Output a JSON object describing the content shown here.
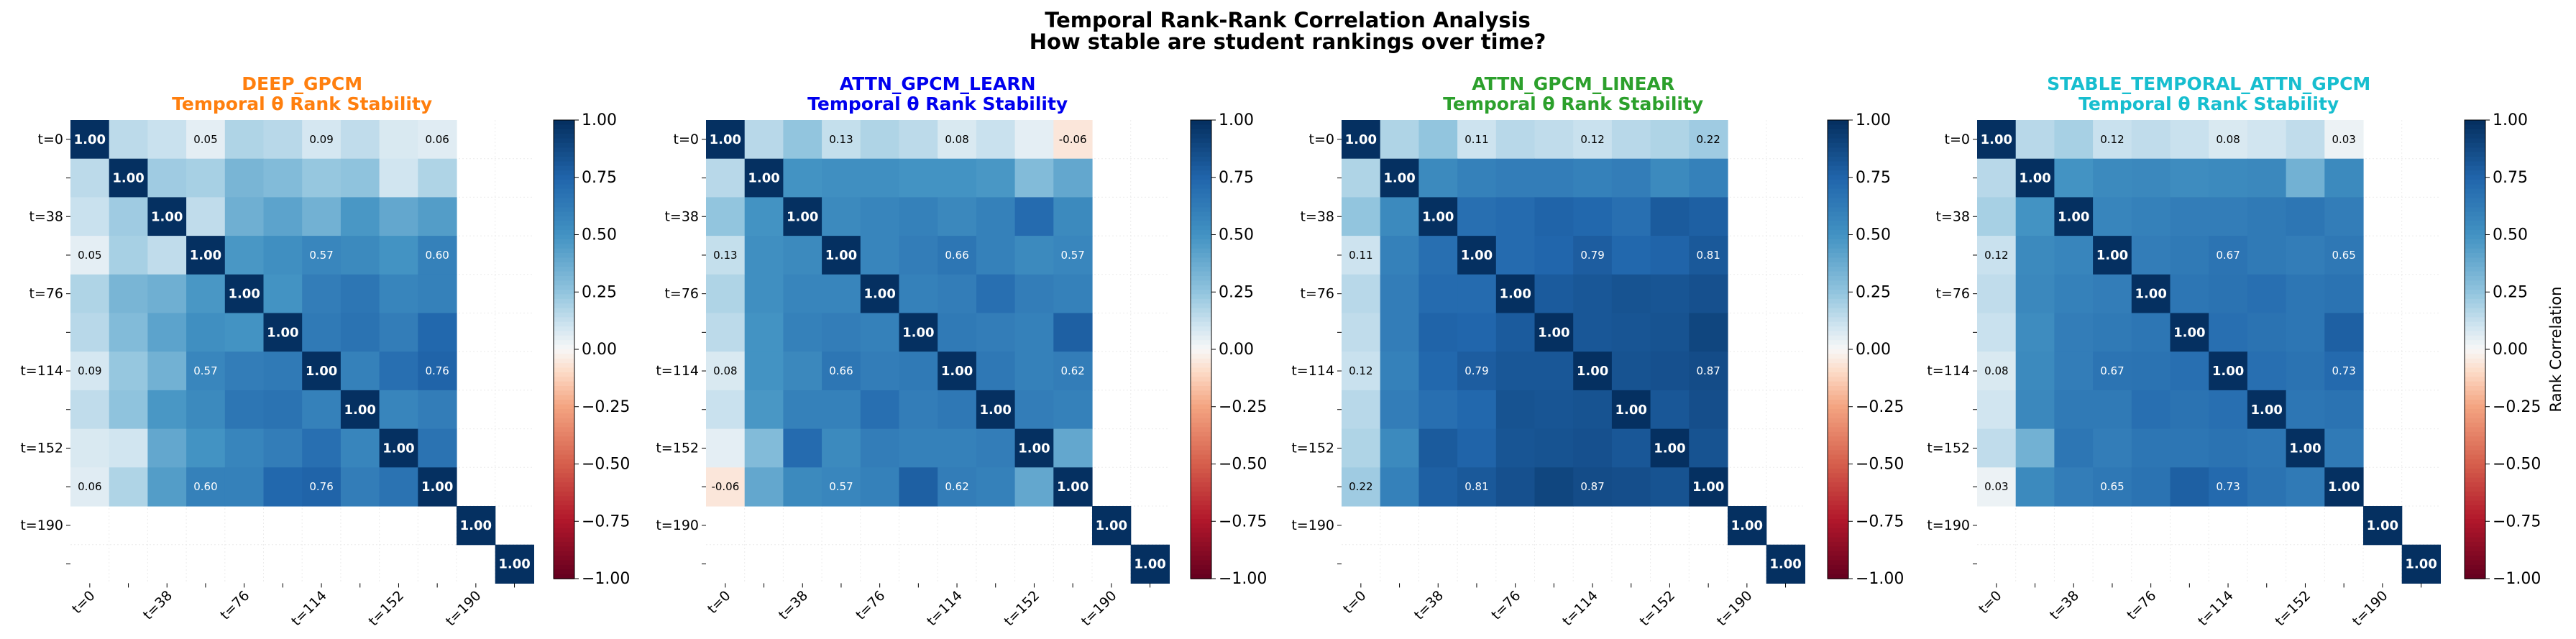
{
  "figure": {
    "title_line1": "Temporal Rank-Rank Correlation Analysis",
    "title_line2": "How stable are student rankings over time?"
  },
  "colorbar": {
    "label": "Rank Correlation",
    "ticks": [
      "1.00",
      "0.75",
      "0.50",
      "0.25",
      "0.00",
      "−0.25",
      "−0.50",
      "−0.75",
      "−1.00"
    ],
    "range": [
      -1,
      1
    ],
    "colormap": "RdBu"
  },
  "chart_data": [
    {
      "type": "heatmap",
      "model": "DEEP_GPCM",
      "title": "Temporal θ Rank Stability",
      "title_color": "#ff7f0e",
      "ytick_labels": [
        "t=0",
        "t=38",
        "t=76",
        "t=114",
        "t=152",
        "t=190"
      ],
      "xtick_labels": [
        "t=0",
        "t=38",
        "t=76",
        "t=114",
        "t=152",
        "t=190"
      ],
      "matrix": [
        [
          1.0,
          0.15,
          0.12,
          0.05,
          0.18,
          0.16,
          0.09,
          0.14,
          0.08,
          0.06,
          null,
          null
        ],
        [
          0.15,
          1.0,
          0.22,
          0.2,
          0.33,
          0.3,
          0.24,
          0.26,
          0.1,
          0.18,
          null,
          null
        ],
        [
          0.12,
          0.22,
          1.0,
          0.14,
          0.36,
          0.42,
          0.35,
          0.48,
          0.4,
          0.45,
          null,
          null
        ],
        [
          0.05,
          0.2,
          0.14,
          1.0,
          0.48,
          0.52,
          0.57,
          0.55,
          0.5,
          0.6,
          null,
          null
        ],
        [
          0.18,
          0.33,
          0.36,
          0.48,
          1.0,
          0.5,
          0.62,
          0.66,
          0.58,
          0.6,
          null,
          null
        ],
        [
          0.16,
          0.3,
          0.42,
          0.52,
          0.5,
          1.0,
          0.64,
          0.68,
          0.62,
          0.74,
          null,
          null
        ],
        [
          0.09,
          0.24,
          0.35,
          0.57,
          0.62,
          0.64,
          1.0,
          0.6,
          0.7,
          0.76,
          null,
          null
        ],
        [
          0.14,
          0.26,
          0.48,
          0.55,
          0.66,
          0.68,
          0.6,
          1.0,
          0.58,
          0.62,
          null,
          null
        ],
        [
          0.08,
          0.1,
          0.4,
          0.5,
          0.58,
          0.62,
          0.7,
          0.58,
          1.0,
          0.68,
          null,
          null
        ],
        [
          0.06,
          0.18,
          0.45,
          0.6,
          0.6,
          0.74,
          0.76,
          0.62,
          0.68,
          1.0,
          null,
          null
        ],
        [
          null,
          null,
          null,
          null,
          null,
          null,
          null,
          null,
          null,
          null,
          1.0,
          null
        ],
        [
          null,
          null,
          null,
          null,
          null,
          null,
          null,
          null,
          null,
          null,
          null,
          1.0
        ]
      ],
      "annotations": [
        {
          "row": 0,
          "col": 3,
          "text": "0.05"
        },
        {
          "row": 0,
          "col": 6,
          "text": "0.09"
        },
        {
          "row": 0,
          "col": 9,
          "text": "0.06"
        },
        {
          "row": 3,
          "col": 0,
          "text": "0.05"
        },
        {
          "row": 3,
          "col": 6,
          "text": "0.57"
        },
        {
          "row": 3,
          "col": 9,
          "text": "0.60"
        },
        {
          "row": 6,
          "col": 0,
          "text": "0.09"
        },
        {
          "row": 6,
          "col": 3,
          "text": "0.57"
        },
        {
          "row": 6,
          "col": 9,
          "text": "0.76"
        },
        {
          "row": 9,
          "col": 0,
          "text": "0.06"
        },
        {
          "row": 9,
          "col": 3,
          "text": "0.60"
        },
        {
          "row": 9,
          "col": 6,
          "text": "0.76"
        }
      ]
    },
    {
      "type": "heatmap",
      "model": "ATTN_GPCM_LEARN",
      "title": "Temporal θ Rank Stability",
      "title_color": "#0000ee",
      "ytick_labels": [
        "t=0",
        "t=38",
        "t=76",
        "t=114",
        "t=152",
        "t=190"
      ],
      "xtick_labels": [
        "t=0",
        "t=38",
        "t=76",
        "t=114",
        "t=152",
        "t=190"
      ],
      "matrix": [
        [
          1.0,
          0.16,
          0.25,
          0.13,
          0.18,
          0.15,
          0.08,
          0.12,
          0.05,
          -0.06,
          null,
          null
        ],
        [
          0.16,
          1.0,
          0.5,
          0.52,
          0.52,
          0.5,
          0.5,
          0.48,
          0.3,
          0.4,
          null,
          null
        ],
        [
          0.25,
          0.5,
          1.0,
          0.55,
          0.58,
          0.6,
          0.56,
          0.6,
          0.72,
          0.55,
          null,
          null
        ],
        [
          0.13,
          0.52,
          0.55,
          1.0,
          0.58,
          0.62,
          0.66,
          0.6,
          0.55,
          0.57,
          null,
          null
        ],
        [
          0.18,
          0.52,
          0.58,
          0.58,
          1.0,
          0.6,
          0.62,
          0.7,
          0.62,
          0.6,
          null,
          null
        ],
        [
          0.15,
          0.5,
          0.6,
          0.62,
          0.6,
          1.0,
          0.64,
          0.62,
          0.6,
          0.78,
          null,
          null
        ],
        [
          0.08,
          0.5,
          0.56,
          0.66,
          0.62,
          0.64,
          1.0,
          0.65,
          0.6,
          0.62,
          null,
          null
        ],
        [
          0.12,
          0.48,
          0.6,
          0.6,
          0.7,
          0.62,
          0.65,
          1.0,
          0.62,
          0.6,
          null,
          null
        ],
        [
          0.05,
          0.3,
          0.72,
          0.55,
          0.62,
          0.6,
          0.6,
          0.62,
          1.0,
          0.4,
          null,
          null
        ],
        [
          -0.06,
          0.4,
          0.55,
          0.57,
          0.6,
          0.78,
          0.62,
          0.6,
          0.4,
          1.0,
          null,
          null
        ],
        [
          null,
          null,
          null,
          null,
          null,
          null,
          null,
          null,
          null,
          null,
          1.0,
          null
        ],
        [
          null,
          null,
          null,
          null,
          null,
          null,
          null,
          null,
          null,
          null,
          null,
          1.0
        ]
      ],
      "annotations": [
        {
          "row": 0,
          "col": 3,
          "text": "0.13"
        },
        {
          "row": 0,
          "col": 6,
          "text": "0.08"
        },
        {
          "row": 0,
          "col": 9,
          "text": "-0.06"
        },
        {
          "row": 3,
          "col": 0,
          "text": "0.13"
        },
        {
          "row": 3,
          "col": 6,
          "text": "0.66"
        },
        {
          "row": 3,
          "col": 9,
          "text": "0.57"
        },
        {
          "row": 6,
          "col": 0,
          "text": "0.08"
        },
        {
          "row": 6,
          "col": 3,
          "text": "0.66"
        },
        {
          "row": 6,
          "col": 9,
          "text": "0.62"
        },
        {
          "row": 9,
          "col": 0,
          "text": "-0.06"
        },
        {
          "row": 9,
          "col": 3,
          "text": "0.57"
        },
        {
          "row": 9,
          "col": 6,
          "text": "0.62"
        }
      ]
    },
    {
      "type": "heatmap",
      "model": "ATTN_GPCM_LINEAR",
      "title": "Temporal θ Rank Stability",
      "title_color": "#2ca02c",
      "ytick_labels": [
        "t=0",
        "t=38",
        "t=76",
        "t=114",
        "t=152",
        "t=190"
      ],
      "xtick_labels": [
        "t=0",
        "t=38",
        "t=76",
        "t=114",
        "t=152",
        "t=190"
      ],
      "matrix": [
        [
          1.0,
          0.18,
          0.25,
          0.11,
          0.16,
          0.14,
          0.12,
          0.16,
          0.18,
          0.22,
          null,
          null
        ],
        [
          0.18,
          1.0,
          0.55,
          0.6,
          0.62,
          0.62,
          0.6,
          0.62,
          0.55,
          0.6,
          null,
          null
        ],
        [
          0.25,
          0.55,
          1.0,
          0.7,
          0.72,
          0.76,
          0.74,
          0.7,
          0.8,
          0.78,
          null,
          null
        ],
        [
          0.11,
          0.6,
          0.7,
          1.0,
          0.72,
          0.75,
          0.79,
          0.74,
          0.76,
          0.81,
          null,
          null
        ],
        [
          0.16,
          0.62,
          0.72,
          0.72,
          1.0,
          0.8,
          0.82,
          0.84,
          0.83,
          0.85,
          null,
          null
        ],
        [
          0.14,
          0.62,
          0.76,
          0.75,
          0.8,
          1.0,
          0.82,
          0.83,
          0.84,
          0.9,
          null,
          null
        ],
        [
          0.12,
          0.6,
          0.74,
          0.79,
          0.82,
          0.82,
          1.0,
          0.84,
          0.85,
          0.87,
          null,
          null
        ],
        [
          0.16,
          0.62,
          0.7,
          0.74,
          0.84,
          0.83,
          0.84,
          1.0,
          0.82,
          0.86,
          null,
          null
        ],
        [
          0.18,
          0.55,
          0.8,
          0.76,
          0.83,
          0.84,
          0.85,
          0.82,
          1.0,
          0.84,
          null,
          null
        ],
        [
          0.22,
          0.6,
          0.78,
          0.81,
          0.85,
          0.9,
          0.87,
          0.86,
          0.84,
          1.0,
          null,
          null
        ],
        [
          null,
          null,
          null,
          null,
          null,
          null,
          null,
          null,
          null,
          null,
          1.0,
          null
        ],
        [
          null,
          null,
          null,
          null,
          null,
          null,
          null,
          null,
          null,
          null,
          null,
          1.0
        ]
      ],
      "annotations": [
        {
          "row": 0,
          "col": 3,
          "text": "0.11"
        },
        {
          "row": 0,
          "col": 6,
          "text": "0.12"
        },
        {
          "row": 0,
          "col": 9,
          "text": "0.22"
        },
        {
          "row": 3,
          "col": 0,
          "text": "0.11"
        },
        {
          "row": 3,
          "col": 6,
          "text": "0.79"
        },
        {
          "row": 3,
          "col": 9,
          "text": "0.81"
        },
        {
          "row": 6,
          "col": 0,
          "text": "0.12"
        },
        {
          "row": 6,
          "col": 3,
          "text": "0.79"
        },
        {
          "row": 6,
          "col": 9,
          "text": "0.87"
        },
        {
          "row": 9,
          "col": 0,
          "text": "0.22"
        },
        {
          "row": 9,
          "col": 3,
          "text": "0.81"
        },
        {
          "row": 9,
          "col": 6,
          "text": "0.87"
        }
      ]
    },
    {
      "type": "heatmap",
      "model": "STABLE_TEMPORAL_ATTN_GPCM",
      "title": "Temporal θ Rank Stability",
      "title_color": "#17becf",
      "ytick_labels": [
        "t=0",
        "t=38",
        "t=76",
        "t=114",
        "t=152",
        "t=190"
      ],
      "xtick_labels": [
        "t=0",
        "t=38",
        "t=76",
        "t=114",
        "t=152",
        "t=190"
      ],
      "matrix": [
        [
          1.0,
          0.16,
          0.2,
          0.12,
          0.14,
          0.12,
          0.08,
          0.1,
          0.14,
          0.03,
          null,
          null
        ],
        [
          0.16,
          1.0,
          0.5,
          0.55,
          0.56,
          0.54,
          0.55,
          0.56,
          0.35,
          0.55,
          null,
          null
        ],
        [
          0.2,
          0.5,
          1.0,
          0.58,
          0.6,
          0.62,
          0.62,
          0.64,
          0.66,
          0.62,
          null,
          null
        ],
        [
          0.12,
          0.55,
          0.58,
          1.0,
          0.62,
          0.64,
          0.67,
          0.64,
          0.62,
          0.65,
          null,
          null
        ],
        [
          0.14,
          0.56,
          0.6,
          0.62,
          1.0,
          0.66,
          0.68,
          0.7,
          0.66,
          0.68,
          null,
          null
        ],
        [
          0.12,
          0.54,
          0.62,
          0.64,
          0.66,
          1.0,
          0.7,
          0.68,
          0.66,
          0.78,
          null,
          null
        ],
        [
          0.08,
          0.55,
          0.62,
          0.67,
          0.68,
          0.7,
          1.0,
          0.7,
          0.68,
          0.73,
          null,
          null
        ],
        [
          0.1,
          0.56,
          0.64,
          0.64,
          0.7,
          0.68,
          0.7,
          1.0,
          0.66,
          0.68,
          null,
          null
        ],
        [
          0.14,
          0.35,
          0.66,
          0.62,
          0.66,
          0.66,
          0.68,
          0.66,
          1.0,
          0.64,
          null,
          null
        ],
        [
          0.03,
          0.55,
          0.62,
          0.65,
          0.68,
          0.78,
          0.73,
          0.68,
          0.64,
          1.0,
          null,
          null
        ],
        [
          null,
          null,
          null,
          null,
          null,
          null,
          null,
          null,
          null,
          null,
          1.0,
          null
        ],
        [
          null,
          null,
          null,
          null,
          null,
          null,
          null,
          null,
          null,
          null,
          null,
          1.0
        ]
      ],
      "annotations": [
        {
          "row": 0,
          "col": 3,
          "text": "0.12"
        },
        {
          "row": 0,
          "col": 6,
          "text": "0.08"
        },
        {
          "row": 0,
          "col": 9,
          "text": "0.03"
        },
        {
          "row": 3,
          "col": 0,
          "text": "0.12"
        },
        {
          "row": 3,
          "col": 6,
          "text": "0.67"
        },
        {
          "row": 3,
          "col": 9,
          "text": "0.65"
        },
        {
          "row": 6,
          "col": 0,
          "text": "0.08"
        },
        {
          "row": 6,
          "col": 3,
          "text": "0.67"
        },
        {
          "row": 6,
          "col": 9,
          "text": "0.73"
        },
        {
          "row": 9,
          "col": 0,
          "text": "0.03"
        },
        {
          "row": 9,
          "col": 3,
          "text": "0.65"
        },
        {
          "row": 9,
          "col": 6,
          "text": "0.73"
        }
      ]
    }
  ]
}
